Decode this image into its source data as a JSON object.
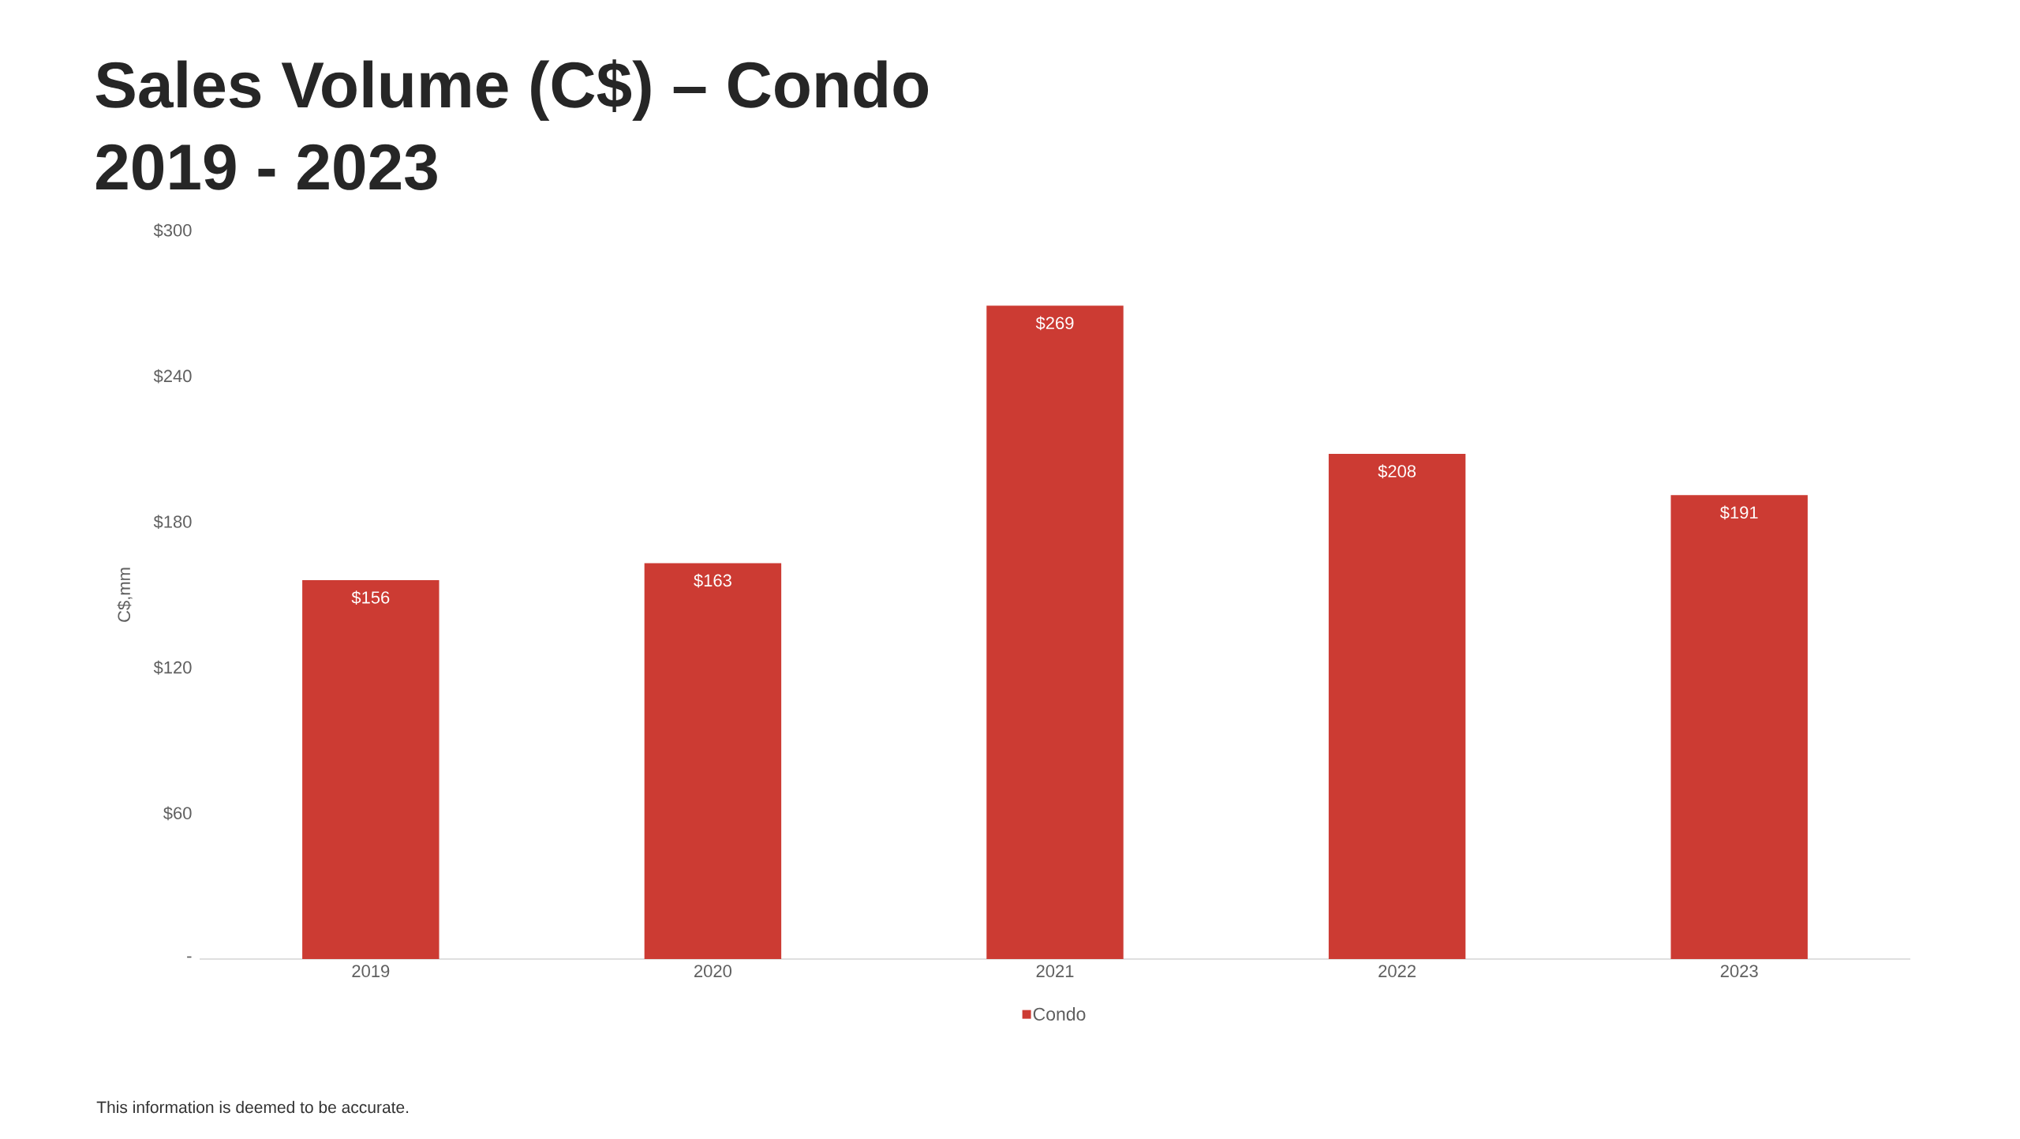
{
  "chart_data": {
    "type": "bar",
    "title": "Sales Volume (C$) – Condo",
    "subtitle": "2019 - 2023",
    "ylabel": "C$,mm",
    "categories": [
      "2019",
      "2020",
      "2021",
      "2022",
      "2023"
    ],
    "series": [
      {
        "name": "Condo",
        "color": "#cc3b33",
        "values": [
          156,
          163,
          269,
          208,
          191
        ],
        "value_labels": [
          "$156",
          "$163",
          "$269",
          "$208",
          "$191"
        ]
      }
    ],
    "ylim": [
      0,
      300
    ],
    "yticks": [
      {
        "value": 0,
        "label": "-"
      },
      {
        "value": 60,
        "label": "$60"
      },
      {
        "value": 120,
        "label": "$120"
      },
      {
        "value": 180,
        "label": "$180"
      },
      {
        "value": 240,
        "label": "$240"
      },
      {
        "value": 300,
        "label": "$300"
      }
    ],
    "legend": "bottom",
    "annotations": [
      "This information is deemed to be accurate."
    ]
  }
}
